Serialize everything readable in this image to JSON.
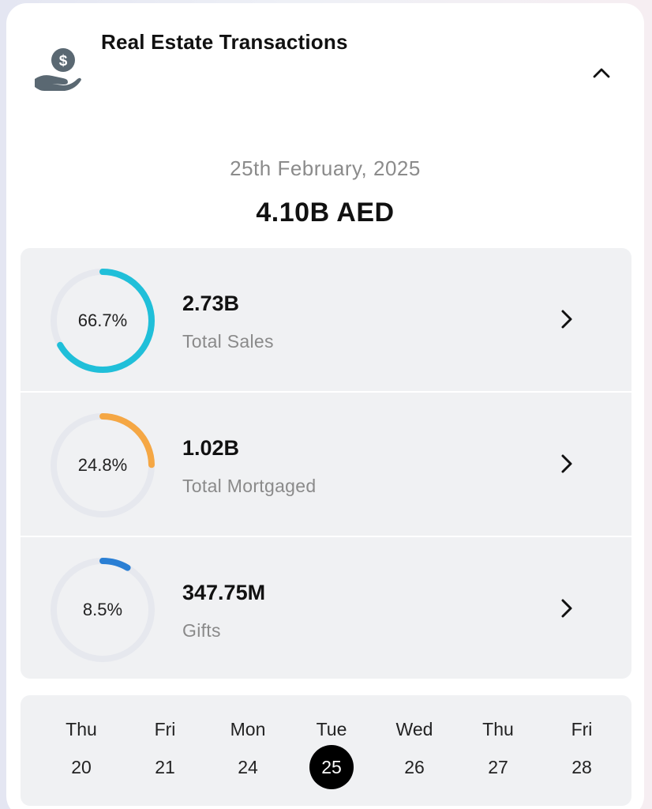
{
  "header": {
    "title": "Real Estate Transactions",
    "icon": "money-hand-icon",
    "collapse_icon": "chevron-up-icon"
  },
  "summary": {
    "date": "25th February, 2025",
    "total": "4.10B AED"
  },
  "stats": [
    {
      "percent_label": "66.7%",
      "percent": 66.7,
      "value": "2.73B",
      "label": "Total Sales",
      "color": "#20bfd9"
    },
    {
      "percent_label": "24.8%",
      "percent": 24.8,
      "value": "1.02B",
      "label": "Total Mortgaged",
      "color": "#f5a744"
    },
    {
      "percent_label": "8.5%",
      "percent": 8.5,
      "value": "347.75M",
      "label": "Gifts",
      "color": "#2a7fd4"
    }
  ],
  "calendar": {
    "days": [
      {
        "name": "Thu",
        "num": "20"
      },
      {
        "name": "Fri",
        "num": "21"
      },
      {
        "name": "Mon",
        "num": "24"
      },
      {
        "name": "Tue",
        "num": "25",
        "selected": true
      },
      {
        "name": "Wed",
        "num": "26"
      },
      {
        "name": "Thu",
        "num": "27"
      },
      {
        "name": "Fri",
        "num": "28"
      }
    ]
  }
}
